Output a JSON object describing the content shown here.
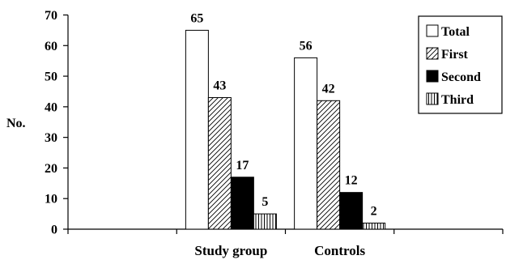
{
  "chart_data": {
    "type": "bar",
    "title": "",
    "xlabel": "",
    "ylabel": "No.",
    "ylim": [
      0,
      70
    ],
    "yticks": [
      0,
      10,
      20,
      30,
      40,
      50,
      60,
      70
    ],
    "categories": [
      "",
      "Study group",
      "Controls",
      ""
    ],
    "series": [
      {
        "name": "Total",
        "values": [
          null,
          65,
          56,
          null
        ],
        "fill": "#ffffff",
        "pattern": "none"
      },
      {
        "name": "First",
        "values": [
          null,
          43,
          42,
          null
        ],
        "fill": "#ffffff",
        "pattern": "diagonal-hatch"
      },
      {
        "name": "Second",
        "values": [
          null,
          17,
          12,
          null
        ],
        "fill": "#000000",
        "pattern": "solid"
      },
      {
        "name": "Third",
        "values": [
          null,
          5,
          2,
          null
        ],
        "fill": "#ffffff",
        "pattern": "vertical-hatch"
      }
    ],
    "data_labels": true,
    "grid": false,
    "legend_position": "top-right"
  }
}
